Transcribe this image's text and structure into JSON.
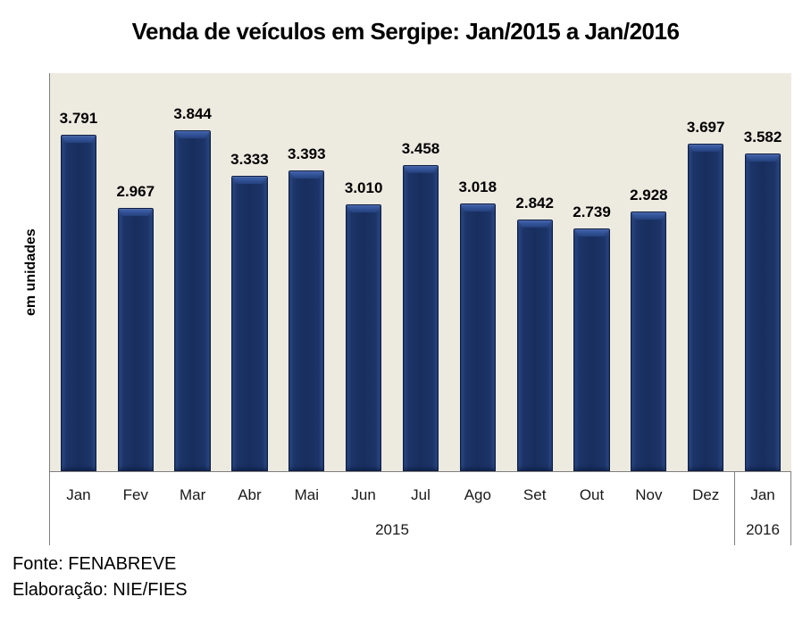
{
  "title": "Venda de veículos em Sergipe: Jan/2015 a Jan/2016",
  "y_axis_label": "em unidades",
  "footer": {
    "source": "Fonte: FENABREVE",
    "elaboration": "Elaboração: NIE/FIES"
  },
  "colors": {
    "bar_fill": "#1B3366",
    "bar_edge": "#0E1F44",
    "bar_highlight": "#3D5FA9",
    "plot_background": "#EDEAE0",
    "axis_line": "#7F7F7F",
    "text": "#000000",
    "page_background": "#FFFFFF"
  },
  "chart_data": {
    "type": "bar",
    "title": "Venda de veículos em Sergipe: Jan/2015 a Jan/2016",
    "ylabel": "em unidades",
    "xlabel": "",
    "categories": [
      "Jan",
      "Fev",
      "Mar",
      "Abr",
      "Mai",
      "Jun",
      "Jul",
      "Ago",
      "Set",
      "Out",
      "Nov",
      "Dez",
      "Jan"
    ],
    "values": [
      3791,
      2967,
      3844,
      3333,
      3393,
      3010,
      3458,
      3018,
      2842,
      2739,
      2928,
      3697,
      3582
    ],
    "value_labels": [
      "3.791",
      "2.967",
      "3.844",
      "3.333",
      "3.393",
      "3.010",
      "3.458",
      "3.018",
      "2.842",
      "2.739",
      "2.928",
      "3.697",
      "3.582"
    ],
    "year_groups": [
      {
        "label": "2015",
        "span": 12
      },
      {
        "label": "2016",
        "span": 1
      }
    ],
    "ylim": [
      0,
      4490
    ],
    "grid": false,
    "legend": null,
    "data_labels": true
  }
}
